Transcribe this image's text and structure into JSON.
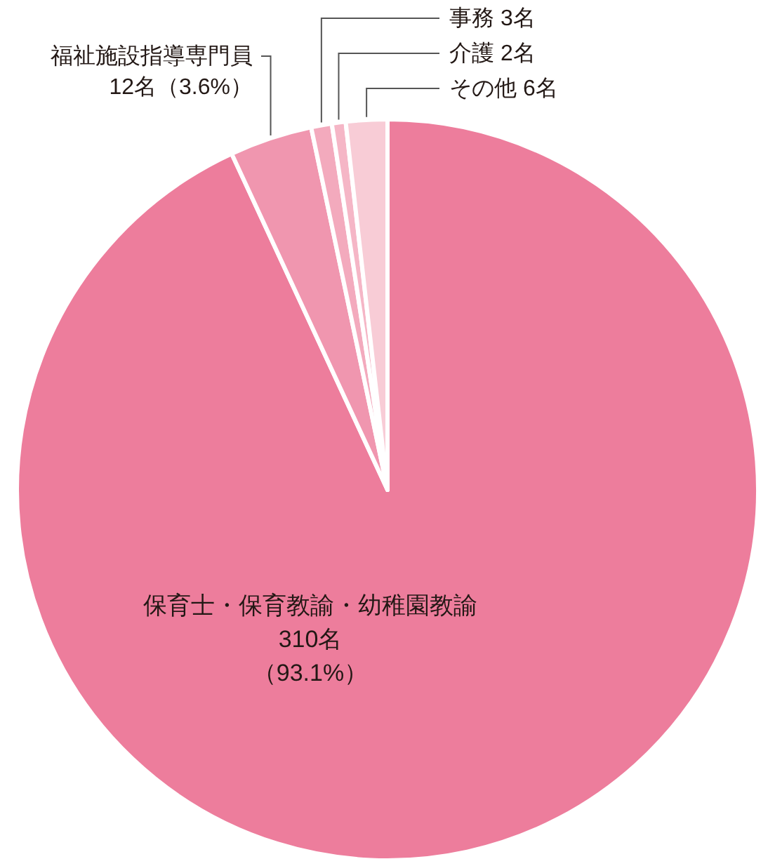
{
  "chart_data": {
    "type": "pie",
    "categories": [
      "保育士・保育教諭・幼稚園教諭",
      "福祉施設指導専門員",
      "事務",
      "介護",
      "その他"
    ],
    "values": [
      310,
      12,
      3,
      2,
      6
    ],
    "colors": [
      "#ed7d9c",
      "#f096af",
      "#f3aabd",
      "#f5b6c6",
      "#f8ccd6"
    ],
    "value_labels": [
      "310名（93.1%）",
      "12名（3.6%）",
      "3名",
      "2名",
      "6名"
    ]
  }
}
